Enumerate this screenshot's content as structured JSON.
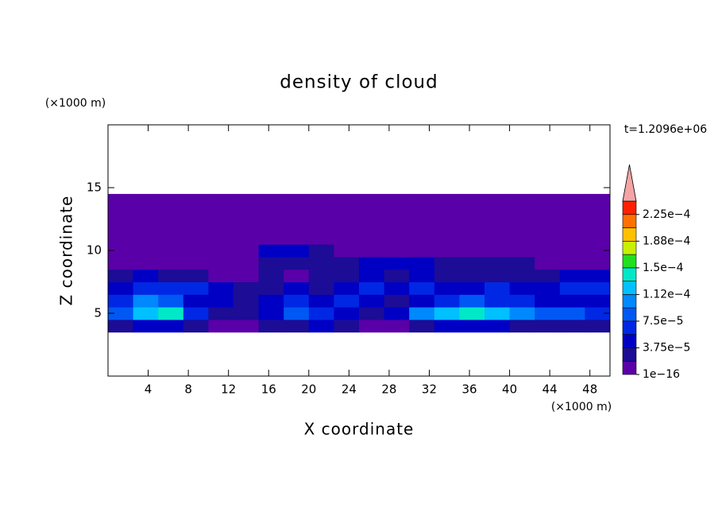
{
  "chart_data": {
    "type": "contour",
    "title": "density of cloud",
    "x_label": "X coordinate",
    "y_label": "Z coordinate",
    "x_unit": "(×1000 m)",
    "y_unit": "(×1000 m)",
    "annotation": "t=1.2096e+06",
    "xlim": [
      0,
      50
    ],
    "ylim": [
      0,
      20
    ],
    "xticks": [
      4,
      8,
      12,
      16,
      20,
      24,
      28,
      32,
      36,
      40,
      44,
      48
    ],
    "yticks": [
      5,
      10,
      15
    ],
    "x_edges": [
      0,
      2.5,
      5,
      7.5,
      10,
      12.5,
      15,
      17.5,
      20,
      22.5,
      25,
      27.5,
      30,
      32.5,
      35,
      37.5,
      40,
      42.5,
      45,
      47.5,
      50
    ],
    "z_edges": [
      3.5,
      4.5,
      5.5,
      6.5,
      7.5,
      8.5,
      9.5,
      10.5,
      11.5,
      12.5,
      13.5,
      14.5
    ],
    "values": [
      [
        3e-05,
        5e-05,
        5e-05,
        3e-05,
        1e-06,
        1e-06,
        3e-05,
        3e-05,
        5e-05,
        3e-05,
        1e-06,
        1e-06,
        3e-05,
        5e-05,
        5e-05,
        5e-05,
        3e-05,
        3e-05,
        3e-05,
        3e-05
      ],
      [
        8.5e-05,
        0.00012,
        0.00014,
        7e-05,
        3e-05,
        3e-05,
        5e-05,
        8.5e-05,
        7e-05,
        5e-05,
        3e-05,
        5e-05,
        0.0001,
        0.00012,
        0.00014,
        0.00012,
        0.0001,
        8.5e-05,
        8.5e-05,
        7e-05
      ],
      [
        7e-05,
        0.0001,
        8.5e-05,
        5e-05,
        5e-05,
        3e-05,
        5e-05,
        7e-05,
        5e-05,
        7e-05,
        5e-05,
        3e-05,
        5e-05,
        7e-05,
        8.5e-05,
        7e-05,
        7e-05,
        5e-05,
        5e-05,
        5e-05
      ],
      [
        5e-05,
        7e-05,
        7e-05,
        7e-05,
        5e-05,
        3e-05,
        3e-05,
        5e-05,
        3e-05,
        5e-05,
        7e-05,
        5e-05,
        7e-05,
        5e-05,
        5e-05,
        7e-05,
        5e-05,
        5e-05,
        7e-05,
        7e-05
      ],
      [
        3e-05,
        5e-05,
        3e-05,
        3e-05,
        1e-06,
        1e-06,
        3e-05,
        1e-06,
        3e-05,
        3e-05,
        5e-05,
        3e-05,
        5e-05,
        3e-05,
        3e-05,
        3e-05,
        3e-05,
        3e-05,
        5e-05,
        5e-05
      ],
      [
        1e-06,
        1e-06,
        1e-06,
        1e-06,
        1e-06,
        1e-06,
        3e-05,
        3e-05,
        3e-05,
        3e-05,
        5e-05,
        5e-05,
        5e-05,
        3e-05,
        3e-05,
        3e-05,
        3e-05,
        1e-06,
        1e-06,
        1e-06
      ],
      [
        1e-06,
        1e-06,
        1e-06,
        1e-06,
        1e-06,
        1e-06,
        5e-05,
        5e-05,
        3e-05,
        1e-06,
        1e-06,
        1e-06,
        1e-06,
        1e-06,
        1e-06,
        1e-06,
        1e-06,
        1e-06,
        1e-06,
        1e-06
      ],
      [
        1e-06,
        1e-06,
        1e-06,
        1e-06,
        1e-06,
        1e-06,
        1e-06,
        1e-06,
        1e-06,
        1e-06,
        1e-06,
        1e-06,
        1e-06,
        1e-06,
        1e-06,
        1e-06,
        1e-06,
        1e-06,
        1e-06,
        1e-06
      ],
      [
        1e-06,
        1e-06,
        1e-06,
        1e-06,
        1e-06,
        1e-06,
        1e-06,
        1e-06,
        1e-06,
        1e-06,
        1e-06,
        1e-06,
        1e-06,
        1e-06,
        1e-06,
        1e-06,
        1e-06,
        1e-06,
        1e-06,
        1e-06
      ],
      [
        1e-06,
        1e-06,
        1e-06,
        1e-06,
        1e-06,
        1e-06,
        1e-06,
        1e-06,
        1e-06,
        1e-06,
        1e-06,
        1e-06,
        1e-06,
        1e-06,
        1e-06,
        1e-06,
        1e-06,
        1e-06,
        1e-06,
        1e-06
      ],
      [
        1e-06,
        1e-06,
        1e-06,
        1e-06,
        1e-06,
        1e-06,
        1e-06,
        1e-06,
        1e-06,
        1e-06,
        1e-06,
        1e-06,
        1e-06,
        1e-06,
        1e-06,
        1e-06,
        1e-06,
        1e-06,
        1e-06,
        1e-06
      ]
    ],
    "colorbar": {
      "levels": [
        1e-16,
        1.875e-05,
        3.75e-05,
        5.625e-05,
        7.5e-05,
        9.375e-05,
        0.0001125,
        0.00013125,
        0.00015,
        0.00016875,
        0.0001875,
        0.00020625,
        0.000225,
        0.00024375
      ],
      "colors": [
        "#5a00a8",
        "#1c0c96",
        "#0000c4",
        "#0028e4",
        "#0058f4",
        "#0088ff",
        "#00c0ff",
        "#00e8c8",
        "#20e020",
        "#c8f000",
        "#ffc000",
        "#ff7000",
        "#ff2000"
      ],
      "extend_color": "#f4a4a4",
      "ticks": [
        {
          "value": 1e-16,
          "label": "1e−16"
        },
        {
          "value": 3.75e-05,
          "label": "3.75e−5"
        },
        {
          "value": 7.5e-05,
          "label": "7.5e−5"
        },
        {
          "value": 0.0001125,
          "label": "1.12e−4"
        },
        {
          "value": 0.00015,
          "label": "1.5e−4"
        },
        {
          "value": 0.0001875,
          "label": "1.88e−4"
        },
        {
          "value": 0.000225,
          "label": "2.25e−4"
        }
      ]
    }
  }
}
